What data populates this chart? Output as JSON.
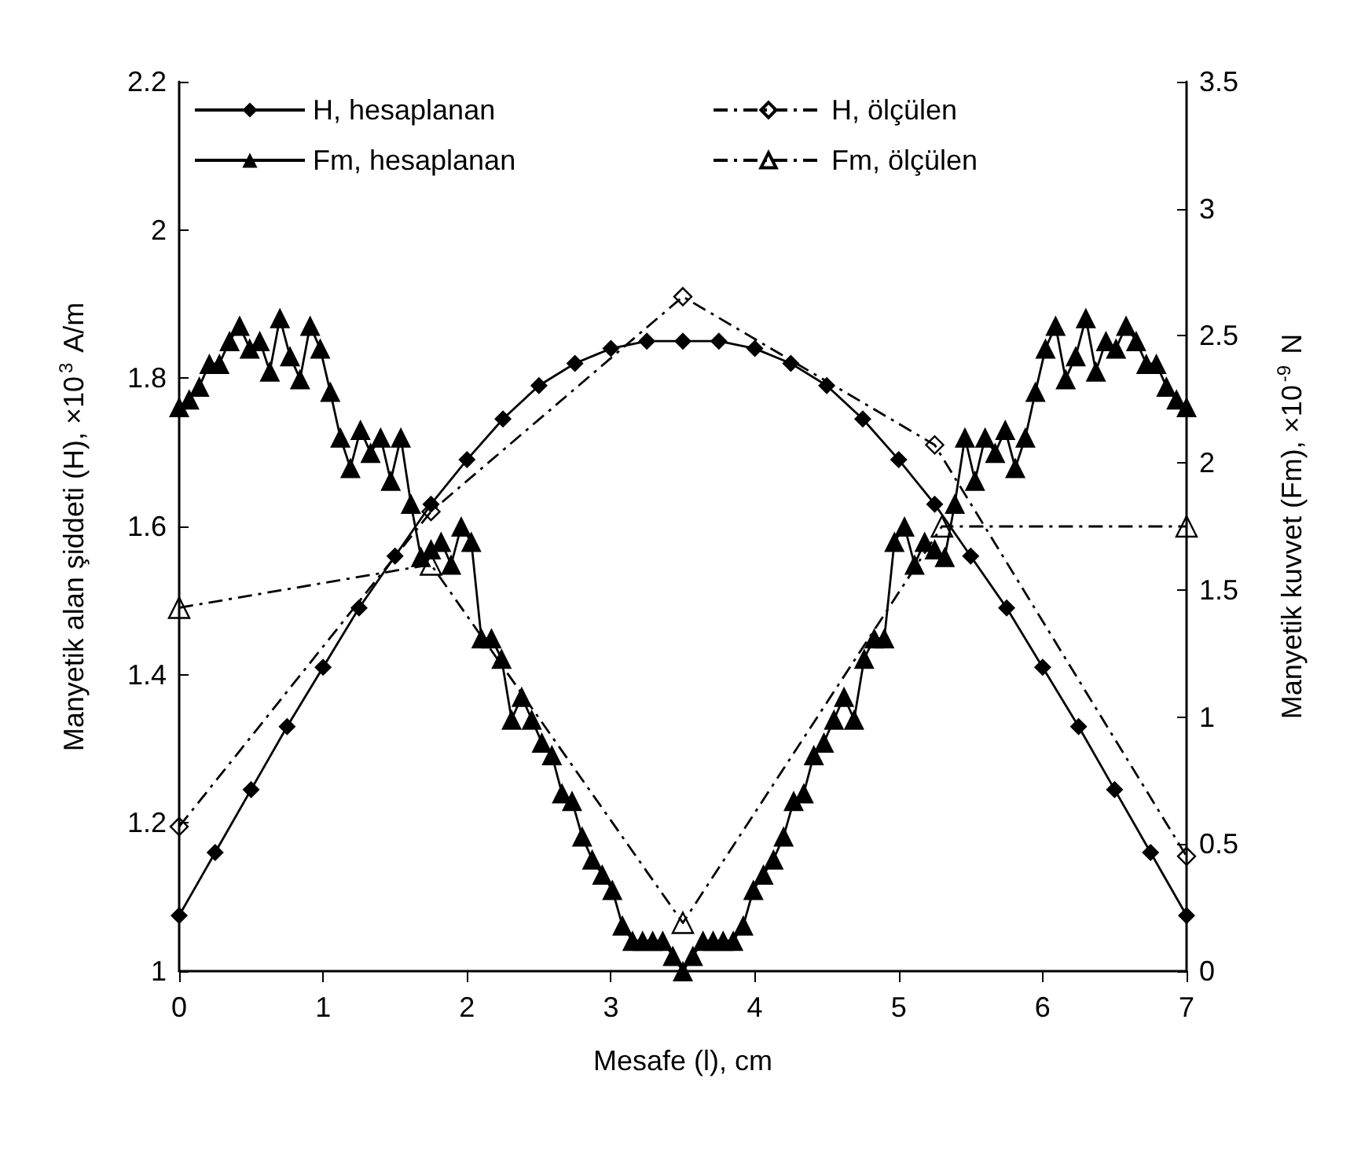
{
  "chart_data": {
    "type": "line",
    "xlabel": "Mesafe (l), cm",
    "ylabel": "Manyetik alan şiddeti (H), ×10$^{3}$ A/m",
    "y2label": "Manyetik kuvvet (Fm), ×10$^{-9}$ N",
    "xlim": [
      0,
      7
    ],
    "xticks": [
      0,
      1,
      2,
      3,
      4,
      5,
      6,
      7
    ],
    "ylim": [
      1,
      2.2
    ],
    "yticks": [
      1,
      1.2,
      1.4,
      1.6,
      1.8,
      2,
      2.2
    ],
    "y2lim": [
      0,
      3.5
    ],
    "y2ticks": [
      0,
      0.5,
      1,
      1.5,
      2,
      2.5,
      3,
      3.5
    ],
    "grid": false,
    "legend": "top left",
    "series": [
      {
        "name": "H, hesaplanan",
        "color": "#000000",
        "marker": "diamond",
        "line_style": "solid",
        "x": [
          0,
          0.25,
          0.5,
          0.75,
          1,
          1.25,
          1.5,
          1.75,
          2,
          2.25,
          2.5,
          2.75,
          3,
          3.25,
          3.5,
          3.75,
          4,
          4.25,
          4.5,
          4.75,
          5,
          5.25,
          5.5,
          5.75,
          6,
          6.25,
          6.5,
          6.75,
          7
        ],
        "values": [
          1.075,
          1.16,
          1.245,
          1.33,
          1.41,
          1.49,
          1.56,
          1.63,
          1.69,
          1.745,
          1.79,
          1.82,
          1.84,
          1.85,
          1.85,
          1.85,
          1.84,
          1.82,
          1.79,
          1.745,
          1.69,
          1.63,
          1.56,
          1.49,
          1.41,
          1.33,
          1.245,
          1.16,
          1.075
        ]
      },
      {
        "name": "H, ölçülen",
        "color": "#000000",
        "marker": "diamond",
        "line_style": "dashed",
        "x": [
          0,
          1.75,
          3.5,
          5.25,
          7
        ],
        "values": [
          1.195,
          1.62,
          1.91,
          1.71,
          1.155
        ]
      },
      {
        "name": "Fm, hesaplanan",
        "color": "#000000",
        "marker": "triangle",
        "line_style": "solid",
        "axis": "y2",
        "x": [
          0,
          0.07,
          0.14,
          0.21,
          0.28,
          0.35,
          0.42,
          0.49,
          0.56,
          0.63,
          0.7,
          0.77,
          0.84,
          0.91,
          0.98,
          1.05,
          1.12,
          1.19,
          1.26,
          1.33,
          1.4,
          1.47,
          1.54,
          1.61,
          1.68,
          1.75,
          1.82,
          1.89,
          1.96,
          2.03,
          2.1,
          2.17,
          2.24,
          2.31,
          2.38,
          2.45,
          2.52,
          2.59,
          2.66,
          2.73,
          2.8,
          2.87,
          2.94,
          3.01,
          3.08,
          3.15,
          3.22,
          3.29,
          3.36,
          3.43,
          3.5,
          3.57,
          3.64,
          3.71,
          3.78,
          3.85,
          3.92,
          3.99,
          4.06,
          4.13,
          4.2,
          4.27,
          4.34,
          4.41,
          4.48,
          4.55,
          4.62,
          4.69,
          4.76,
          4.83,
          4.9,
          4.97,
          5.04,
          5.11,
          5.18,
          5.25,
          5.32,
          5.39,
          5.46,
          5.53,
          5.6,
          5.67,
          5.74,
          5.81,
          5.88,
          5.95,
          6.02,
          6.09,
          6.16,
          6.23,
          6.3,
          6.37,
          6.44,
          6.51,
          6.58,
          6.65,
          6.72,
          6.79,
          6.86,
          6.93,
          7
        ],
        "values": [
          2.22,
          2.25,
          2.3,
          2.39,
          2.39,
          2.48,
          2.54,
          2.45,
          2.48,
          2.36,
          2.57,
          2.42,
          2.33,
          2.54,
          2.45,
          2.28,
          2.1,
          1.98,
          2.13,
          2.04,
          2.1,
          1.93,
          2.1,
          1.84,
          1.63,
          1.66,
          1.69,
          1.6,
          1.75,
          1.69,
          1.31,
          1.31,
          1.23,
          0.99,
          1.08,
          0.99,
          0.9,
          0.85,
          0.7,
          0.67,
          0.53,
          0.44,
          0.38,
          0.32,
          0.18,
          0.12,
          0.12,
          0.12,
          0.12,
          0.06,
          0,
          0.06,
          0.12,
          0.12,
          0.12,
          0.12,
          0.18,
          0.32,
          0.38,
          0.44,
          0.53,
          0.67,
          0.7,
          0.85,
          0.9,
          0.99,
          1.08,
          0.99,
          1.23,
          1.31,
          1.31,
          1.69,
          1.75,
          1.6,
          1.69,
          1.66,
          1.63,
          1.84,
          2.1,
          1.93,
          2.1,
          2.04,
          2.13,
          1.98,
          2.1,
          2.28,
          2.45,
          2.54,
          2.33,
          2.42,
          2.57,
          2.36,
          2.48,
          2.45,
          2.54,
          2.48,
          2.39,
          2.39,
          2.3,
          2.25,
          2.22
        ]
      },
      {
        "name": "Fm, ölçülen",
        "color": "#000000",
        "marker": "triangle",
        "line_style": "dashed",
        "axis": "y2",
        "x": [
          0,
          1.75,
          3.5,
          5.3,
          7
        ],
        "values": [
          1.43,
          1.6,
          0.19,
          1.75,
          1.75
        ]
      }
    ]
  }
}
